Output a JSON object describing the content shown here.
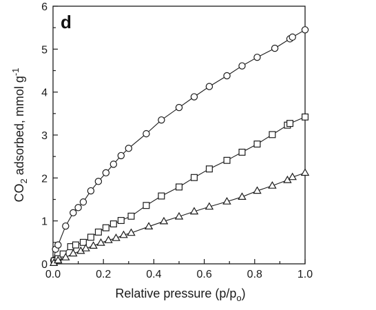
{
  "chart_data": {
    "type": "scatter",
    "panel_label": "d",
    "xlabel": {
      "main": "Relative pressure (p/p",
      "sub": "o",
      "end": ")"
    },
    "ylabel": {
      "pre": "CO",
      "sub": "2",
      "mid": " adsorbed, mmol g",
      "sup": "-1"
    },
    "xlim": [
      0.0,
      1.0
    ],
    "ylim": [
      0,
      6
    ],
    "xticks": [
      0.0,
      0.2,
      0.4,
      0.6,
      0.8,
      1.0
    ],
    "xtick_labels": [
      "0.0",
      "0.2",
      "0.4",
      "0.6",
      "0.8",
      "1.0"
    ],
    "yticks": [
      0,
      1,
      2,
      3,
      4,
      5,
      6
    ],
    "ytick_labels": [
      "0",
      "1",
      "2",
      "3",
      "4",
      "5",
      "6"
    ],
    "grid": false,
    "series": [
      {
        "marker": "circle",
        "x": [
          0.003,
          0.01,
          0.02,
          0.05,
          0.08,
          0.1,
          0.12,
          0.15,
          0.18,
          0.21,
          0.24,
          0.27,
          0.3,
          0.37,
          0.43,
          0.5,
          0.56,
          0.62,
          0.69,
          0.75,
          0.81,
          0.88,
          0.94,
          0.95,
          1.0
        ],
        "y": [
          0.08,
          0.34,
          0.44,
          0.88,
          1.19,
          1.31,
          1.44,
          1.7,
          1.92,
          2.12,
          2.32,
          2.52,
          2.69,
          3.03,
          3.35,
          3.64,
          3.89,
          4.13,
          4.38,
          4.61,
          4.81,
          5.02,
          5.24,
          5.28,
          5.45
        ]
      },
      {
        "marker": "square",
        "x": [
          0.005,
          0.02,
          0.04,
          0.07,
          0.09,
          0.12,
          0.15,
          0.18,
          0.21,
          0.24,
          0.27,
          0.31,
          0.37,
          0.43,
          0.5,
          0.56,
          0.62,
          0.69,
          0.75,
          0.81,
          0.87,
          0.93,
          0.94,
          1.0
        ],
        "y": [
          0.07,
          0.12,
          0.23,
          0.4,
          0.44,
          0.5,
          0.62,
          0.74,
          0.84,
          0.93,
          1.01,
          1.11,
          1.36,
          1.58,
          1.79,
          2.01,
          2.21,
          2.41,
          2.6,
          2.79,
          3.01,
          3.23,
          3.27,
          3.42
        ]
      },
      {
        "marker": "triangle",
        "x": [
          0.003,
          0.02,
          0.05,
          0.08,
          0.11,
          0.13,
          0.16,
          0.19,
          0.22,
          0.25,
          0.28,
          0.31,
          0.38,
          0.44,
          0.5,
          0.56,
          0.62,
          0.69,
          0.75,
          0.81,
          0.87,
          0.93,
          0.95,
          1.0
        ],
        "y": [
          0.02,
          0.08,
          0.15,
          0.24,
          0.3,
          0.36,
          0.42,
          0.49,
          0.55,
          0.6,
          0.67,
          0.72,
          0.87,
          0.99,
          1.1,
          1.22,
          1.33,
          1.45,
          1.56,
          1.7,
          1.82,
          1.95,
          2.02,
          2.12
        ]
      }
    ]
  }
}
